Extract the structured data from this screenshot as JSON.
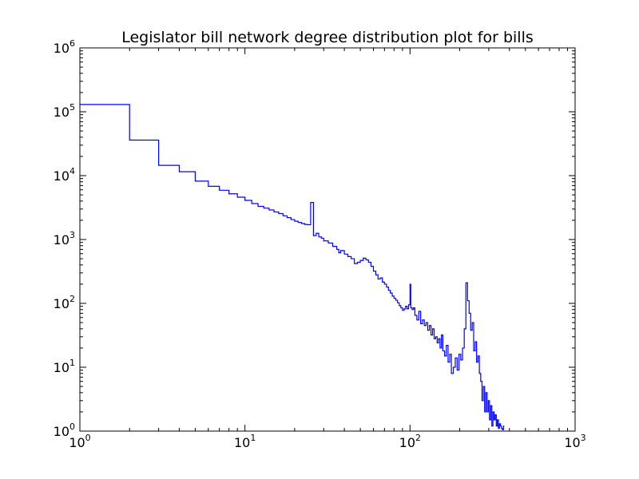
{
  "chart_data": {
    "type": "line",
    "title": "Legislator bill network degree distribution plot for bills",
    "xlabel": "",
    "ylabel": "",
    "xscale": "log",
    "yscale": "log",
    "xlim": [
      1,
      1000
    ],
    "ylim": [
      1,
      1000000
    ],
    "grid": false,
    "line_color": "#0000ff",
    "x_ticks": [
      {
        "base": "10",
        "exp": "0"
      },
      {
        "base": "10",
        "exp": "1"
      },
      {
        "base": "10",
        "exp": "2"
      },
      {
        "base": "10",
        "exp": "3"
      }
    ],
    "y_ticks": [
      {
        "base": "10",
        "exp": "0"
      },
      {
        "base": "10",
        "exp": "1"
      },
      {
        "base": "10",
        "exp": "2"
      },
      {
        "base": "10",
        "exp": "3"
      },
      {
        "base": "10",
        "exp": "4"
      },
      {
        "base": "10",
        "exp": "5"
      },
      {
        "base": "10",
        "exp": "6"
      }
    ],
    "series": [
      {
        "drawstyle": "steps-post",
        "points": [
          [
            1,
            130000
          ],
          [
            2,
            36000
          ],
          [
            3,
            14500
          ],
          [
            4,
            11500
          ],
          [
            5,
            8200
          ],
          [
            6,
            6800
          ],
          [
            7,
            5900
          ],
          [
            8,
            5200
          ],
          [
            9,
            4600
          ],
          [
            10,
            4100
          ],
          [
            11,
            3650
          ],
          [
            12,
            3300
          ],
          [
            13,
            3100
          ],
          [
            14,
            2900
          ],
          [
            15,
            2700
          ],
          [
            16,
            2550
          ],
          [
            17,
            2350
          ],
          [
            18,
            2200
          ],
          [
            19,
            2050
          ],
          [
            20,
            1930
          ],
          [
            21,
            1850
          ],
          [
            22,
            1780
          ],
          [
            23,
            1720
          ],
          [
            24,
            1700
          ],
          [
            25,
            3800
          ],
          [
            26,
            1150
          ],
          [
            27,
            1250
          ],
          [
            28,
            1100
          ],
          [
            29,
            1050
          ],
          [
            30,
            950
          ],
          [
            32,
            880
          ],
          [
            34,
            780
          ],
          [
            36,
            700
          ],
          [
            37,
            620
          ],
          [
            38,
            670
          ],
          [
            40,
            590
          ],
          [
            42,
            540
          ],
          [
            44,
            500
          ],
          [
            46,
            420
          ],
          [
            48,
            440
          ],
          [
            50,
            470
          ],
          [
            52,
            510
          ],
          [
            54,
            480
          ],
          [
            56,
            440
          ],
          [
            58,
            380
          ],
          [
            60,
            320
          ],
          [
            62,
            280
          ],
          [
            64,
            240
          ],
          [
            66,
            250
          ],
          [
            68,
            215
          ],
          [
            70,
            200
          ],
          [
            72,
            180
          ],
          [
            74,
            160
          ],
          [
            76,
            145
          ],
          [
            78,
            130
          ],
          [
            80,
            120
          ],
          [
            82,
            112
          ],
          [
            84,
            102
          ],
          [
            86,
            92
          ],
          [
            88,
            85
          ],
          [
            90,
            78
          ],
          [
            92,
            82
          ],
          [
            94,
            90
          ],
          [
            96,
            82
          ],
          [
            98,
            95
          ],
          [
            100,
            200
          ],
          [
            101,
            85
          ],
          [
            103,
            80
          ],
          [
            105,
            85
          ],
          [
            107,
            65
          ],
          [
            110,
            55
          ],
          [
            113,
            75
          ],
          [
            116,
            48
          ],
          [
            119,
            55
          ],
          [
            122,
            45
          ],
          [
            125,
            50
          ],
          [
            128,
            38
          ],
          [
            131,
            45
          ],
          [
            134,
            32
          ],
          [
            137,
            40
          ],
          [
            140,
            28
          ],
          [
            143,
            30
          ],
          [
            146,
            24
          ],
          [
            149,
            28
          ],
          [
            152,
            20
          ],
          [
            155,
            32
          ],
          [
            158,
            18
          ],
          [
            162,
            15
          ],
          [
            166,
            22
          ],
          [
            170,
            12
          ],
          [
            174,
            16
          ],
          [
            178,
            8
          ],
          [
            183,
            10
          ],
          [
            188,
            14
          ],
          [
            193,
            9
          ],
          [
            198,
            16
          ],
          [
            203,
            13
          ],
          [
            208,
            20
          ],
          [
            213,
            40
          ],
          [
            218,
            210
          ],
          [
            223,
            110
          ],
          [
            228,
            70
          ],
          [
            233,
            38
          ],
          [
            238,
            50
          ],
          [
            243,
            18
          ],
          [
            248,
            25
          ],
          [
            253,
            12
          ],
          [
            258,
            15
          ],
          [
            263,
            8
          ],
          [
            268,
            6
          ],
          [
            273,
            3
          ],
          [
            278,
            5
          ],
          [
            283,
            2
          ],
          [
            288,
            4
          ],
          [
            293,
            2
          ],
          [
            298,
            3
          ],
          [
            303,
            1.5
          ],
          [
            308,
            2.5
          ],
          [
            313,
            1.2
          ],
          [
            318,
            2
          ],
          [
            323,
            1.5
          ],
          [
            328,
            1.8
          ],
          [
            333,
            1.2
          ],
          [
            338,
            1.5
          ],
          [
            343,
            1.1
          ],
          [
            348,
            1.3
          ],
          [
            353,
            1.2
          ],
          [
            358,
            1.1
          ],
          [
            363,
            1.05
          ],
          [
            368,
            1.2
          ]
        ]
      }
    ]
  }
}
